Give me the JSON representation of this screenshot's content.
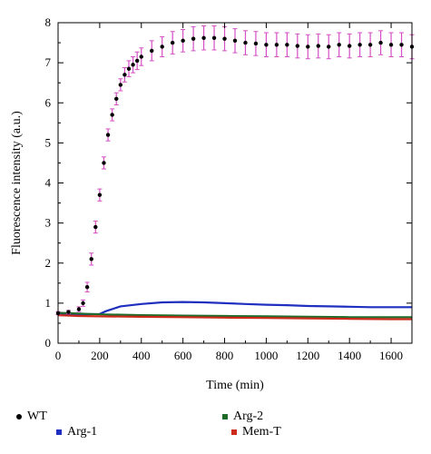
{
  "chart_data": {
    "type": "scatter",
    "title": "",
    "xlabel": "Time (min)",
    "ylabel": "Fluorescence intensity (a.u.)",
    "xlim": [
      0,
      1700
    ],
    "ylim": [
      0,
      8
    ],
    "xticks": [
      0,
      200,
      400,
      600,
      800,
      1000,
      1200,
      1400,
      1600
    ],
    "yticks": [
      0,
      1,
      2,
      3,
      4,
      5,
      6,
      7,
      8
    ],
    "grid": false,
    "legend_position": "bottom",
    "series": [
      {
        "name": "WT",
        "style": "points-with-errorbars",
        "color": "#000000",
        "errorbar_color": "#d44fc4",
        "x": [
          0,
          50,
          100,
          120,
          140,
          160,
          180,
          200,
          220,
          240,
          260,
          280,
          300,
          320,
          340,
          360,
          380,
          400,
          450,
          500,
          550,
          600,
          650,
          700,
          750,
          800,
          850,
          900,
          950,
          1000,
          1050,
          1100,
          1150,
          1200,
          1250,
          1300,
          1350,
          1400,
          1450,
          1500,
          1550,
          1600,
          1650,
          1700
        ],
        "y": [
          0.75,
          0.78,
          0.85,
          1.0,
          1.4,
          2.1,
          2.9,
          3.7,
          4.5,
          5.2,
          5.7,
          6.1,
          6.45,
          6.7,
          6.85,
          6.95,
          7.05,
          7.15,
          7.3,
          7.4,
          7.5,
          7.55,
          7.6,
          7.62,
          7.62,
          7.6,
          7.55,
          7.5,
          7.48,
          7.45,
          7.45,
          7.45,
          7.42,
          7.4,
          7.42,
          7.4,
          7.45,
          7.42,
          7.45,
          7.45,
          7.5,
          7.45,
          7.45,
          7.4
        ],
        "error": [
          0.04,
          0.04,
          0.06,
          0.08,
          0.12,
          0.15,
          0.15,
          0.15,
          0.15,
          0.15,
          0.15,
          0.15,
          0.15,
          0.18,
          0.2,
          0.2,
          0.22,
          0.22,
          0.25,
          0.25,
          0.28,
          0.28,
          0.3,
          0.3,
          0.3,
          0.3,
          0.3,
          0.3,
          0.3,
          0.3,
          0.3,
          0.3,
          0.3,
          0.3,
          0.3,
          0.3,
          0.3,
          0.3,
          0.3,
          0.3,
          0.3,
          0.3,
          0.3,
          0.3
        ]
      },
      {
        "name": "Arg-1",
        "style": "line",
        "color": "#1f2fbf",
        "x": [
          0,
          100,
          200,
          230,
          300,
          400,
          500,
          600,
          700,
          800,
          900,
          1000,
          1100,
          1200,
          1300,
          1400,
          1500,
          1600,
          1700
        ],
        "y": [
          0.72,
          0.72,
          0.73,
          0.8,
          0.92,
          0.98,
          1.02,
          1.03,
          1.02,
          1.0,
          0.98,
          0.96,
          0.95,
          0.93,
          0.92,
          0.91,
          0.9,
          0.9,
          0.9
        ]
      },
      {
        "name": "Arg-2",
        "style": "line",
        "color": "#1f6b2a",
        "x": [
          0,
          100,
          200,
          400,
          600,
          800,
          1000,
          1200,
          1400,
          1600,
          1700
        ],
        "y": [
          0.76,
          0.74,
          0.72,
          0.7,
          0.69,
          0.68,
          0.67,
          0.66,
          0.65,
          0.65,
          0.65
        ]
      },
      {
        "name": "Mem-T",
        "style": "line",
        "color": "#cc2a1a",
        "x": [
          0,
          100,
          200,
          400,
          600,
          800,
          1000,
          1200,
          1400,
          1600,
          1700
        ],
        "y": [
          0.7,
          0.68,
          0.67,
          0.66,
          0.65,
          0.64,
          0.63,
          0.62,
          0.61,
          0.6,
          0.6
        ]
      }
    ]
  }
}
